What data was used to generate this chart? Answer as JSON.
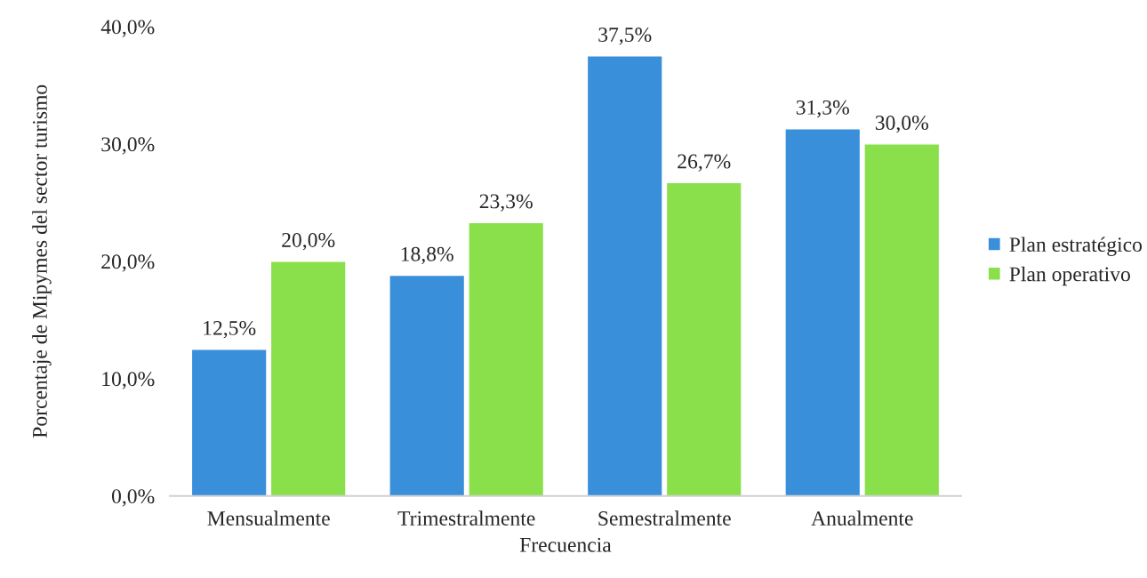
{
  "chart_data": {
    "type": "bar",
    "xlabel": "Frecuencia",
    "ylabel": "Porcentaje de Mipymes del sector turismo",
    "categories": [
      "Mensualmente",
      "Trimestralmente",
      "Semestralmente",
      "Anualmente"
    ],
    "series": [
      {
        "name": "Plan estratégico",
        "color": "#3a8fdb",
        "values": [
          12.5,
          18.8,
          37.5,
          31.3
        ],
        "value_labels": [
          "12,5%",
          "18,8%",
          "37,5%",
          "31,3%"
        ]
      },
      {
        "name": "Plan operativo",
        "color": "#8ae04a",
        "values": [
          20.0,
          23.3,
          26.7,
          30.0
        ],
        "value_labels": [
          "20,0%",
          "23,3%",
          "26,7%",
          "30,0%"
        ]
      }
    ],
    "ylim": [
      0,
      40
    ],
    "yticks": [
      {
        "value": 0,
        "label": "0,0%"
      },
      {
        "value": 10,
        "label": "10,0%"
      },
      {
        "value": 20,
        "label": "20,0%"
      },
      {
        "value": 30,
        "label": "30,0%"
      },
      {
        "value": 40,
        "label": "40,0%"
      }
    ],
    "grid": false,
    "legend": "right"
  }
}
